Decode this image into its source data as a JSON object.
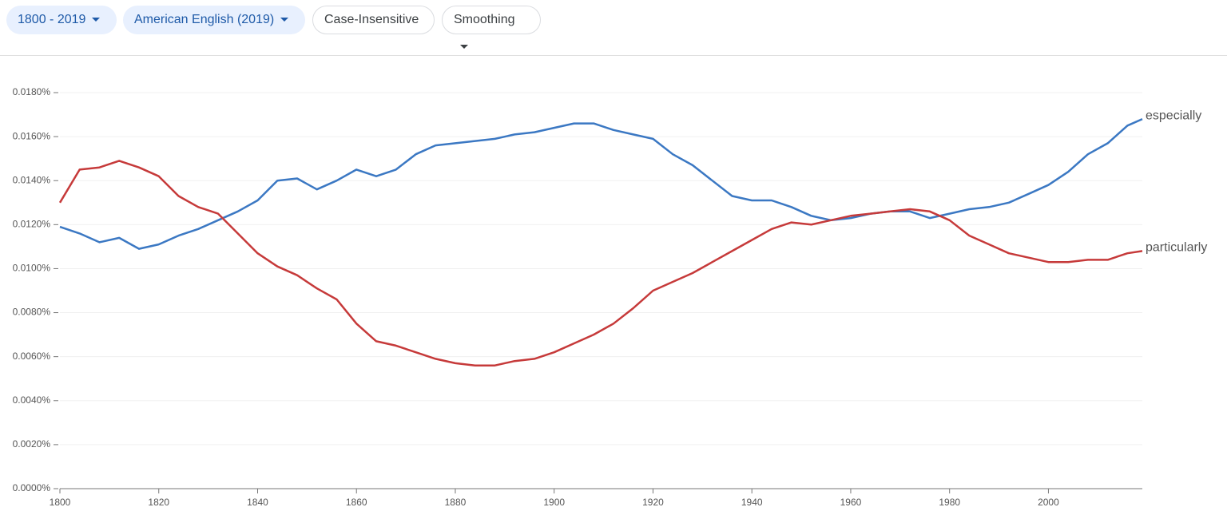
{
  "controls": {
    "year_range": "1800 - 2019",
    "corpus": "American English (2019)",
    "case": "Case-Insensitive",
    "smoothing": "Smoothing"
  },
  "chart_data": {
    "type": "line",
    "x": [
      1800,
      1804,
      1808,
      1812,
      1816,
      1820,
      1824,
      1828,
      1832,
      1836,
      1840,
      1844,
      1848,
      1852,
      1856,
      1860,
      1864,
      1868,
      1872,
      1876,
      1880,
      1884,
      1888,
      1892,
      1896,
      1900,
      1904,
      1908,
      1912,
      1916,
      1920,
      1924,
      1928,
      1932,
      1936,
      1940,
      1944,
      1948,
      1952,
      1956,
      1960,
      1964,
      1968,
      1972,
      1976,
      1980,
      1984,
      1988,
      1992,
      1996,
      2000,
      2004,
      2008,
      2012,
      2016,
      2019
    ],
    "series": [
      {
        "name": "especially",
        "color": "#3b78c3",
        "values": [
          0.0119,
          0.0116,
          0.0112,
          0.0114,
          0.0109,
          0.0111,
          0.0115,
          0.0118,
          0.0122,
          0.0126,
          0.0131,
          0.014,
          0.0141,
          0.0136,
          0.014,
          0.0145,
          0.0142,
          0.0145,
          0.0152,
          0.0156,
          0.0157,
          0.0158,
          0.0159,
          0.0161,
          0.0162,
          0.0164,
          0.0166,
          0.0166,
          0.0163,
          0.0161,
          0.0159,
          0.0152,
          0.0147,
          0.014,
          0.0133,
          0.0131,
          0.0131,
          0.0128,
          0.0124,
          0.0122,
          0.0123,
          0.0125,
          0.0126,
          0.0126,
          0.0123,
          0.0125,
          0.0127,
          0.0128,
          0.013,
          0.0134,
          0.0138,
          0.0144,
          0.0152,
          0.0157,
          0.0165,
          0.0168
        ]
      },
      {
        "name": "particularly",
        "color": "#c63a3a",
        "values": [
          0.013,
          0.0145,
          0.0146,
          0.0149,
          0.0146,
          0.0142,
          0.0133,
          0.0128,
          0.0125,
          0.0116,
          0.0107,
          0.0101,
          0.0097,
          0.0091,
          0.0086,
          0.0075,
          0.0067,
          0.0065,
          0.0062,
          0.0059,
          0.0057,
          0.0056,
          0.0056,
          0.0058,
          0.0059,
          0.0062,
          0.0066,
          0.007,
          0.0075,
          0.0082,
          0.009,
          0.0094,
          0.0098,
          0.0103,
          0.0108,
          0.0113,
          0.0118,
          0.0121,
          0.012,
          0.0122,
          0.0124,
          0.0125,
          0.0126,
          0.0127,
          0.0126,
          0.0122,
          0.0115,
          0.0111,
          0.0107,
          0.0105,
          0.0103,
          0.0103,
          0.0104,
          0.0104,
          0.0107,
          0.0108
        ]
      }
    ],
    "xlim": [
      1800,
      2019
    ],
    "xticks": [
      1800,
      1820,
      1840,
      1860,
      1880,
      1900,
      1920,
      1940,
      1960,
      1980,
      2000
    ],
    "ylim": [
      0,
      0.018
    ],
    "yticks": [
      {
        "value": 0,
        "label": "0.0000%"
      },
      {
        "value": 0.002,
        "label": "0.0020%"
      },
      {
        "value": 0.004,
        "label": "0.0040%"
      },
      {
        "value": 0.006,
        "label": "0.0060%"
      },
      {
        "value": 0.008,
        "label": "0.0080%"
      },
      {
        "value": 0.01,
        "label": "0.0100%"
      },
      {
        "value": 0.012,
        "label": "0.0120%"
      },
      {
        "value": 0.014,
        "label": "0.0140%"
      },
      {
        "value": 0.016,
        "label": "0.0160%"
      },
      {
        "value": 0.018,
        "label": "0.0180%"
      }
    ],
    "grid": true
  }
}
